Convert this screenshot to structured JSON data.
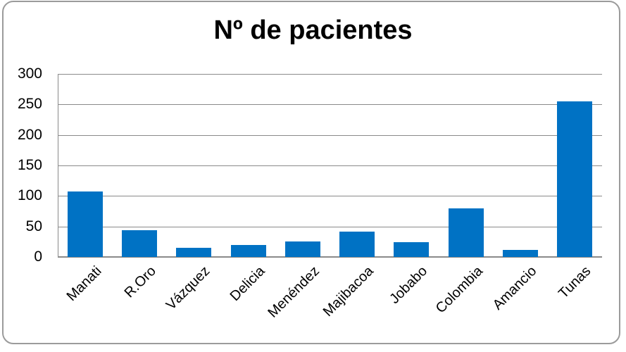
{
  "chart_data": {
    "type": "bar",
    "title": "Nº de pacientes",
    "categories": [
      "Manati",
      "R.Oro",
      "Vázquez",
      "Delicia",
      "Menéndez",
      "Majibacoa",
      "Jobabo",
      "Colombia",
      "Amancio",
      "Tunas"
    ],
    "values": [
      107,
      44,
      15,
      20,
      25,
      41,
      24,
      80,
      12,
      255
    ],
    "series_count": 1,
    "xlabel": "",
    "ylabel": "",
    "ylim": [
      0,
      300
    ],
    "ytick_interval": 50,
    "yticks": [
      0,
      50,
      100,
      150,
      200,
      250,
      300
    ],
    "ytick_labels": [
      "0",
      "50",
      "100",
      "150",
      "200",
      "250",
      "300"
    ],
    "grid": "horizontal",
    "legend": "none",
    "x_label_rotation_deg": 45,
    "colors": {
      "bar": "#0072c4",
      "gridline": "#8a8a8a",
      "axis": "#8a8a8a",
      "chart_border": "#9b9b9b",
      "title_text": "#000000",
      "tick_text": "#000000",
      "background": "#ffffff"
    }
  }
}
